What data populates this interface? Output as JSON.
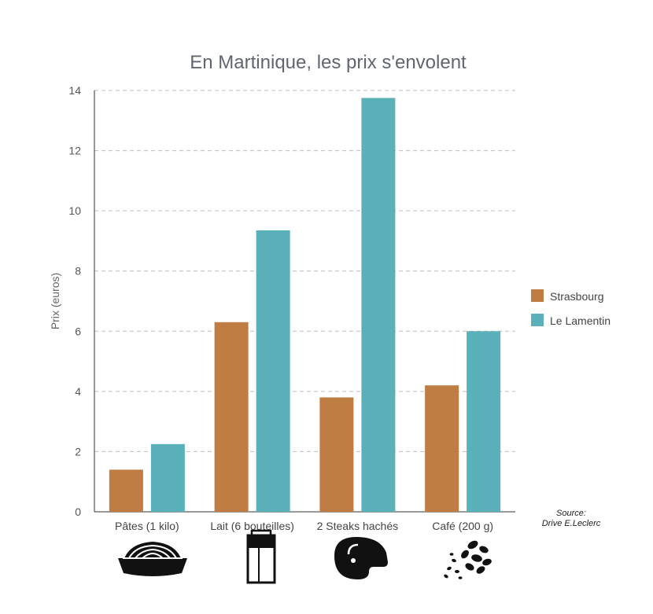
{
  "chart_data": {
    "type": "bar",
    "title": "En Martinique, les prix s'envolent",
    "xlabel": "",
    "ylabel": "Prix (euros)",
    "ylim": [
      0,
      14
    ],
    "yticks": [
      "0",
      "2",
      "4",
      "6",
      "8",
      "10",
      "12",
      "14"
    ],
    "grid": true,
    "legend_position": "right",
    "categories": [
      "Pâtes (1 kilo)",
      "Lait (6 bouteilles)",
      "2 Steaks hachés",
      "Café (200 g)"
    ],
    "category_icons": [
      "pasta-bowl-icon",
      "milk-carton-icon",
      "steak-icon",
      "coffee-beans-icon"
    ],
    "series": [
      {
        "name": "Strasbourg",
        "color": "#c07d43",
        "values": [
          1.4,
          6.3,
          3.8,
          4.2
        ]
      },
      {
        "name": "Le Lamentin",
        "color": "#5ab1b9",
        "values": [
          2.25,
          9.35,
          13.75,
          6.0
        ]
      }
    ],
    "source_label": "Source:",
    "source_text": "Drive E.Leclerc"
  }
}
